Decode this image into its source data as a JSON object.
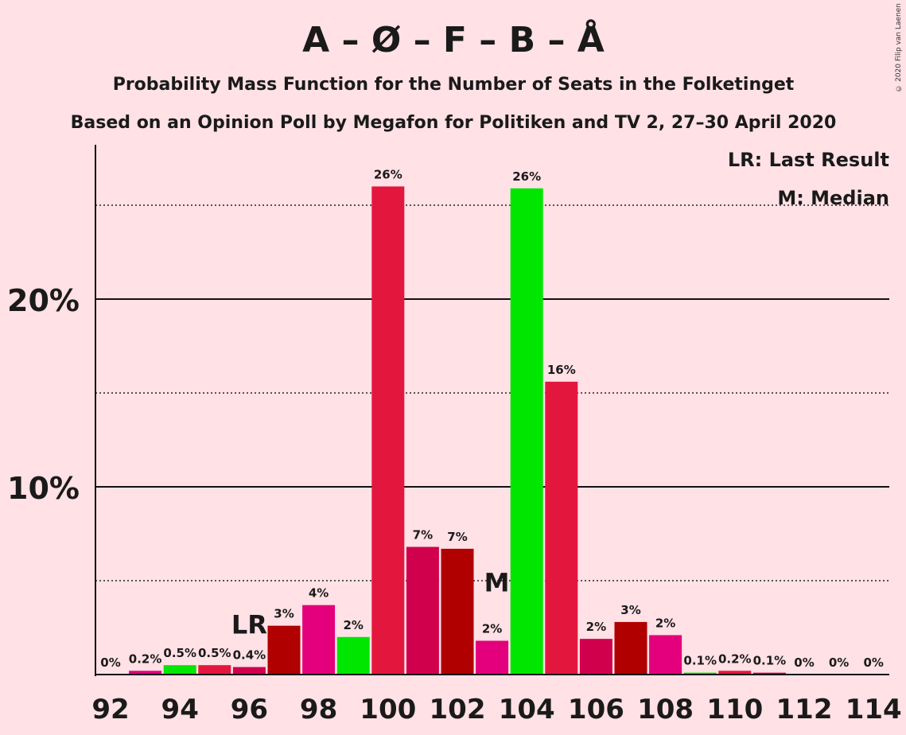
{
  "chart_data": {
    "type": "bar",
    "title": "A – Ø – F – B – Å",
    "subtitle": "Probability Mass Function for the Number of Seats in the Folketinget",
    "subtitle2": "Based on an Opinion Poll by Megafon for Politiken and TV 2, 27–30 April 2020",
    "copyright": "© 2020 Filip van Laenen",
    "legend": {
      "lr": "LR: Last Result",
      "median": "M: Median",
      "placement": "top-right"
    },
    "xlabel": "",
    "ylabel": "",
    "ylim": [
      0,
      28
    ],
    "yticks": [
      {
        "value": 10,
        "label": "10%"
      },
      {
        "value": 20,
        "label": "20%"
      }
    ],
    "dotted_gridlines": [
      5,
      15,
      25
    ],
    "xticks": [
      92,
      94,
      96,
      98,
      100,
      102,
      104,
      106,
      108,
      110,
      112,
      114
    ],
    "last_result": {
      "x": 96,
      "label": "LR"
    },
    "median": {
      "x": 103,
      "label": "M"
    },
    "bars": [
      {
        "x": 92,
        "value": 0,
        "label": "0%",
        "color": "#e0004f"
      },
      {
        "x": 93,
        "value": 0.2,
        "label": "0.2%",
        "color": "#e4007c"
      },
      {
        "x": 94,
        "value": 0.5,
        "label": "0.5%",
        "color": "#00e600"
      },
      {
        "x": 95,
        "value": 0.5,
        "label": "0.5%",
        "color": "#e3173e"
      },
      {
        "x": 96,
        "value": 0.4,
        "label": "0.4%",
        "color": "#d0004d"
      },
      {
        "x": 97,
        "value": 2.6,
        "label": "3%",
        "color": "#b00000"
      },
      {
        "x": 98,
        "value": 3.7,
        "label": "4%",
        "color": "#e4007c"
      },
      {
        "x": 99,
        "value": 2.0,
        "label": "2%",
        "color": "#00e600"
      },
      {
        "x": 100,
        "value": 26.0,
        "label": "26%",
        "color": "#e3173e"
      },
      {
        "x": 101,
        "value": 6.8,
        "label": "7%",
        "color": "#d0004d"
      },
      {
        "x": 102,
        "value": 6.7,
        "label": "7%",
        "color": "#b00000"
      },
      {
        "x": 103,
        "value": 1.8,
        "label": "2%",
        "color": "#e4007c"
      },
      {
        "x": 104,
        "value": 25.9,
        "label": "26%",
        "color": "#00e600"
      },
      {
        "x": 105,
        "value": 15.6,
        "label": "16%",
        "color": "#e3173e"
      },
      {
        "x": 106,
        "value": 1.9,
        "label": "2%",
        "color": "#d0004d"
      },
      {
        "x": 107,
        "value": 2.8,
        "label": "3%",
        "color": "#b00000"
      },
      {
        "x": 108,
        "value": 2.1,
        "label": "2%",
        "color": "#e4007c"
      },
      {
        "x": 109,
        "value": 0.1,
        "label": "0.1%",
        "color": "#00e600"
      },
      {
        "x": 110,
        "value": 0.2,
        "label": "0.2%",
        "color": "#e3173e"
      },
      {
        "x": 111,
        "value": 0.1,
        "label": "0.1%",
        "color": "#d0004d"
      },
      {
        "x": 112,
        "value": 0,
        "label": "0%",
        "color": "#b00000"
      },
      {
        "x": 113,
        "value": 0,
        "label": "0%",
        "color": "#e4007c"
      },
      {
        "x": 114,
        "value": 0,
        "label": "0%",
        "color": "#00e600"
      }
    ]
  }
}
